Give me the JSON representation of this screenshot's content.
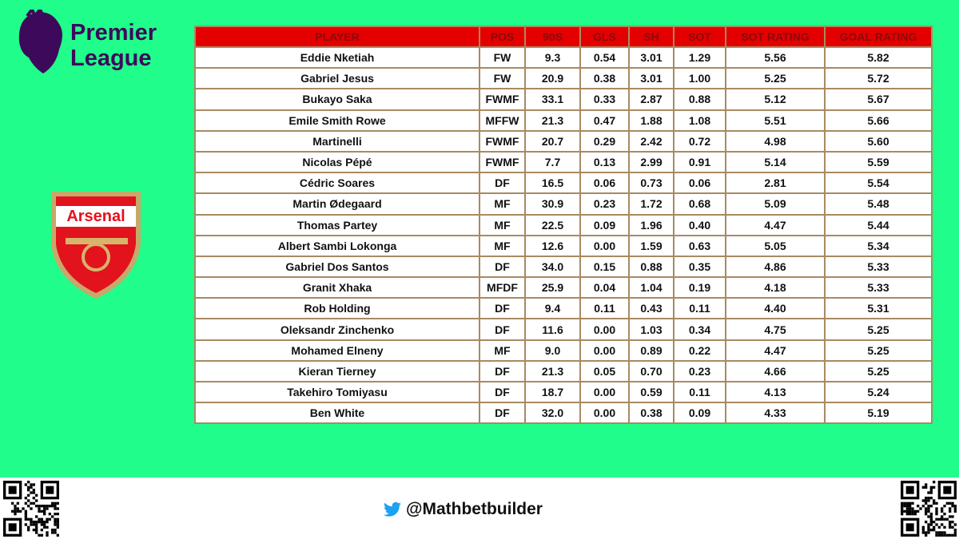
{
  "header": {
    "league_line1": "Premier",
    "league_line2": "League",
    "club": "Arsenal"
  },
  "table": {
    "columns": [
      "PLAYER",
      "POS",
      "90S",
      "GLS",
      "SH",
      "SOT",
      "SOT RATING",
      "GOAL RATING"
    ],
    "rows": [
      [
        "Eddie Nketiah",
        "FW",
        "9.3",
        "0.54",
        "3.01",
        "1.29",
        "5.56",
        "5.82"
      ],
      [
        "Gabriel Jesus",
        "FW",
        "20.9",
        "0.38",
        "3.01",
        "1.00",
        "5.25",
        "5.72"
      ],
      [
        "Bukayo Saka",
        "FWMF",
        "33.1",
        "0.33",
        "2.87",
        "0.88",
        "5.12",
        "5.67"
      ],
      [
        "Emile Smith Rowe",
        "MFFW",
        "21.3",
        "0.47",
        "1.88",
        "1.08",
        "5.51",
        "5.66"
      ],
      [
        "Martinelli",
        "FWMF",
        "20.7",
        "0.29",
        "2.42",
        "0.72",
        "4.98",
        "5.60"
      ],
      [
        "Nicolas Pépé",
        "FWMF",
        "7.7",
        "0.13",
        "2.99",
        "0.91",
        "5.14",
        "5.59"
      ],
      [
        "Cédric Soares",
        "DF",
        "16.5",
        "0.06",
        "0.73",
        "0.06",
        "2.81",
        "5.54"
      ],
      [
        "Martin Ødegaard",
        "MF",
        "30.9",
        "0.23",
        "1.72",
        "0.68",
        "5.09",
        "5.48"
      ],
      [
        "Thomas Partey",
        "MF",
        "22.5",
        "0.09",
        "1.96",
        "0.40",
        "4.47",
        "5.44"
      ],
      [
        "Albert Sambi Lokonga",
        "MF",
        "12.6",
        "0.00",
        "1.59",
        "0.63",
        "5.05",
        "5.34"
      ],
      [
        "Gabriel Dos Santos",
        "DF",
        "34.0",
        "0.15",
        "0.88",
        "0.35",
        "4.86",
        "5.33"
      ],
      [
        "Granit Xhaka",
        "MFDF",
        "25.9",
        "0.04",
        "1.04",
        "0.19",
        "4.18",
        "5.33"
      ],
      [
        "Rob Holding",
        "DF",
        "9.4",
        "0.11",
        "0.43",
        "0.11",
        "4.40",
        "5.31"
      ],
      [
        "Oleksandr Zinchenko",
        "DF",
        "11.6",
        "0.00",
        "1.03",
        "0.34",
        "4.75",
        "5.25"
      ],
      [
        "Mohamed Elneny",
        "MF",
        "9.0",
        "0.00",
        "0.89",
        "0.22",
        "4.47",
        "5.25"
      ],
      [
        "Kieran Tierney",
        "DF",
        "21.3",
        "0.05",
        "0.70",
        "0.23",
        "4.66",
        "5.25"
      ],
      [
        "Takehiro Tomiyasu",
        "DF",
        "18.7",
        "0.00",
        "0.59",
        "0.11",
        "4.13",
        "5.24"
      ],
      [
        "Ben White",
        "DF",
        "32.0",
        "0.00",
        "0.38",
        "0.09",
        "4.33",
        "5.19"
      ]
    ]
  },
  "footer": {
    "handle": "@Mathbetbuilder"
  }
}
